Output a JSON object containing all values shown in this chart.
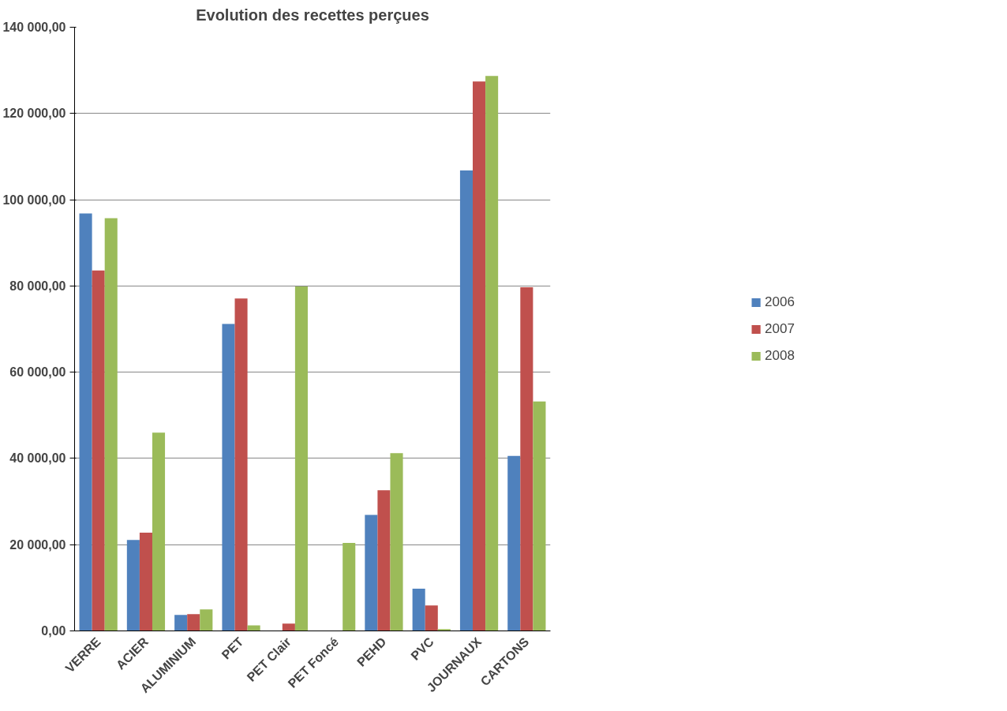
{
  "chart_data": {
    "type": "bar",
    "title": "Evolution des recettes perçues",
    "categories": [
      "VERRE",
      "ACIER",
      "ALUMINIUM",
      "PET",
      "PET Clair",
      "PET Foncé",
      "PEHD",
      "PVC",
      "JOURNAUX",
      "CARTONS"
    ],
    "series": [
      {
        "name": "2006",
        "color": "#4f81bd",
        "values": [
          96800,
          21100,
          3700,
          71200,
          0,
          0,
          26900,
          9800,
          106800,
          40600
        ]
      },
      {
        "name": "2007",
        "color": "#c0504d",
        "values": [
          83600,
          22800,
          3900,
          77100,
          1700,
          0,
          32600,
          5900,
          127400,
          79700
        ]
      },
      {
        "name": "2008",
        "color": "#9bbb59",
        "values": [
          95700,
          46000,
          5000,
          1300,
          79900,
          20400,
          41200,
          400,
          128700,
          53200
        ]
      }
    ],
    "ylim": [
      0,
      140000
    ],
    "yticks": [
      {
        "value": 0,
        "label": "0,00"
      },
      {
        "value": 20000,
        "label": "20 000,00"
      },
      {
        "value": 40000,
        "label": "40 000,00"
      },
      {
        "value": 60000,
        "label": "60 000,00"
      },
      {
        "value": 80000,
        "label": "80 000,00"
      },
      {
        "value": 100000,
        "label": "100 000,00"
      },
      {
        "value": 120000,
        "label": "120 000,00"
      },
      {
        "value": 140000,
        "label": "140 000,00"
      }
    ],
    "grid": "y",
    "legend": "right"
  }
}
